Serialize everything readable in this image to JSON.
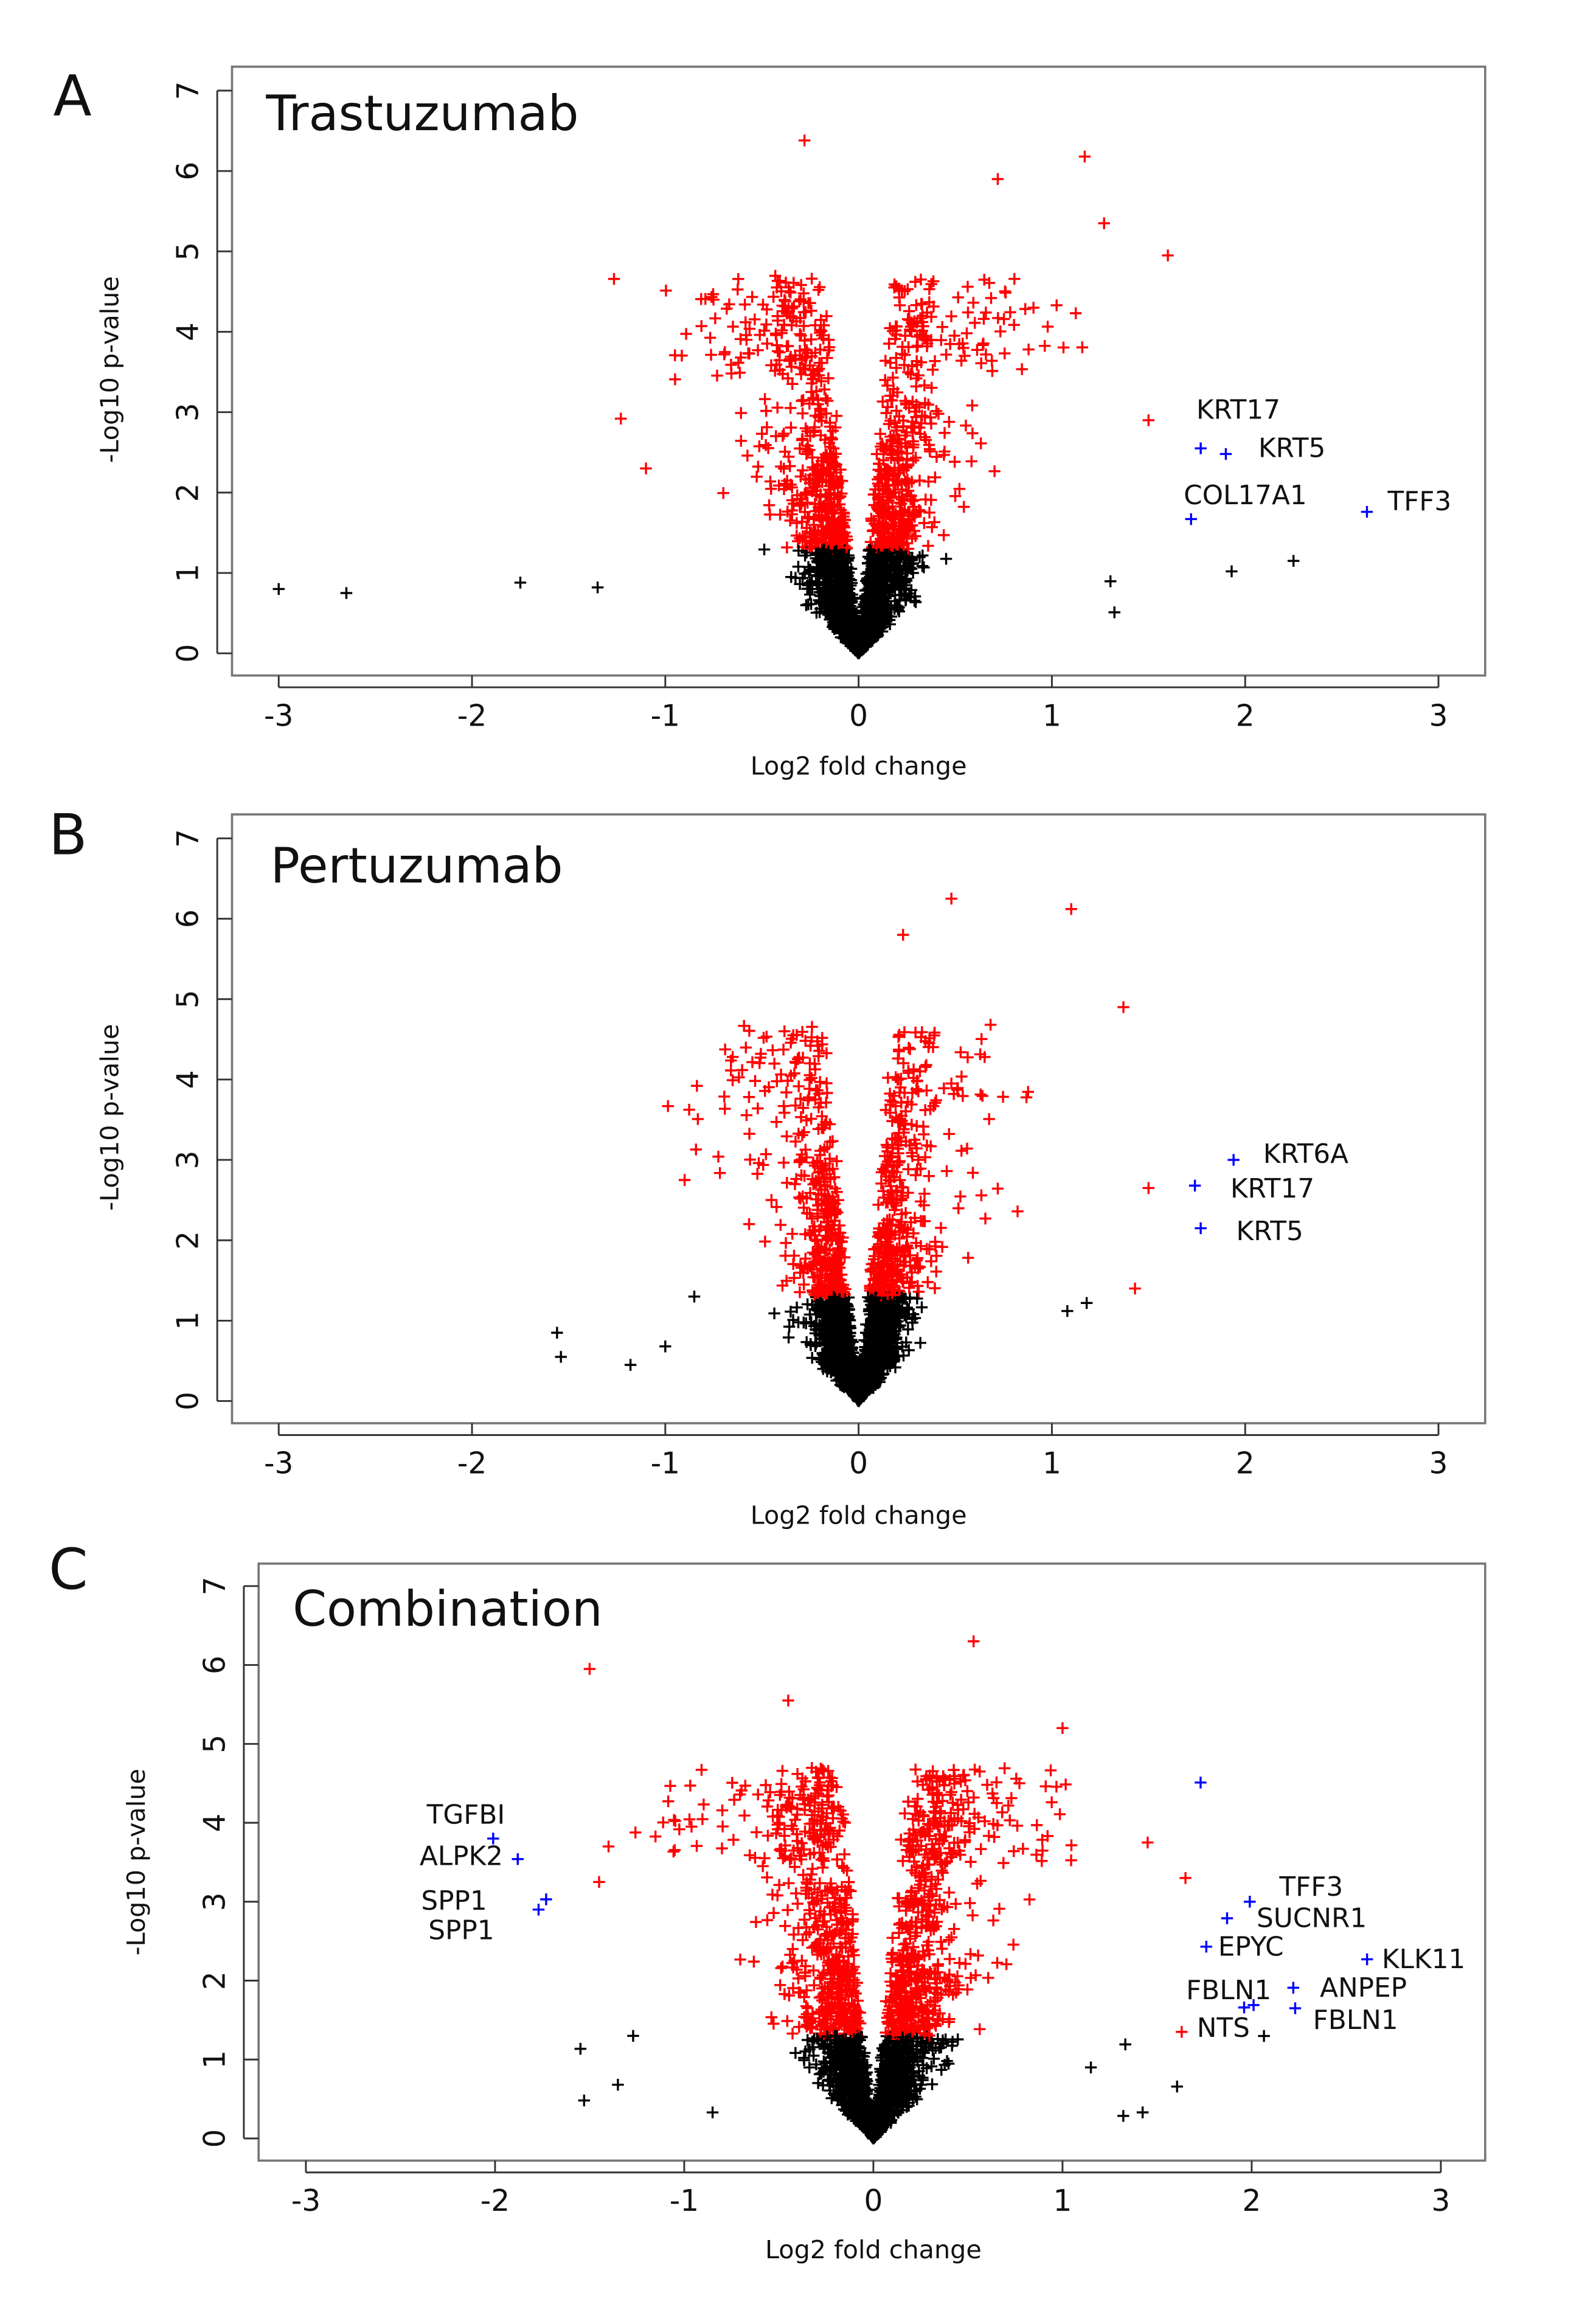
{
  "chart_data": [
    {
      "type": "scatter",
      "panel_letter": "A",
      "title": "Trastuzumab",
      "xlabel": "Log2 fold change",
      "ylabel": "-Log10 p-value",
      "xlim": [
        -3.2,
        3.2
      ],
      "ylim": [
        0,
        7
      ],
      "xticks": [
        "-3",
        "-2",
        "-1",
        "0",
        "1",
        "2",
        "3"
      ],
      "yticks": [
        "0",
        "1",
        "2",
        "3",
        "4",
        "5",
        "6",
        "7"
      ],
      "grid": false,
      "significance_threshold_y": 1.3,
      "colors": {
        "significant": "#ff0000",
        "not_significant": "#000000",
        "highlighted": "#0000ff"
      },
      "highlighted_genes": [
        {
          "label": "KRT17",
          "x": 1.77,
          "y": 2.55
        },
        {
          "label": "KRT5",
          "x": 1.9,
          "y": 2.48
        },
        {
          "label": "COL17A1",
          "x": 1.72,
          "y": 1.67
        },
        {
          "label": "TFF3",
          "x": 2.63,
          "y": 1.76
        }
      ],
      "notable_points": [
        {
          "x": -3.0,
          "y": 0.8
        },
        {
          "x": -2.65,
          "y": 0.75
        },
        {
          "x": -1.75,
          "y": 0.88
        },
        {
          "x": -1.35,
          "y": 0.82
        },
        {
          "x": -1.23,
          "y": 2.92
        },
        {
          "x": -1.1,
          "y": 2.3
        },
        {
          "x": -0.28,
          "y": 6.38
        },
        {
          "x": 1.17,
          "y": 6.18
        },
        {
          "x": 0.72,
          "y": 5.9
        },
        {
          "x": 1.27,
          "y": 5.35
        },
        {
          "x": 1.6,
          "y": 4.95
        },
        {
          "x": 1.93,
          "y": 1.02
        },
        {
          "x": 2.25,
          "y": 1.15
        },
        {
          "x": 1.5,
          "y": 2.9
        }
      ]
    },
    {
      "type": "scatter",
      "panel_letter": "B",
      "title": "Pertuzumab",
      "xlabel": "Log2 fold change",
      "ylabel": "-Log10 p-value",
      "xlim": [
        -3.2,
        3.2
      ],
      "ylim": [
        0,
        7
      ],
      "xticks": [
        "-3",
        "-2",
        "-1",
        "0",
        "1",
        "2",
        "3"
      ],
      "yticks": [
        "0",
        "1",
        "2",
        "3",
        "4",
        "5",
        "6",
        "7"
      ],
      "grid": false,
      "significance_threshold_y": 1.3,
      "colors": {
        "significant": "#ff0000",
        "not_significant": "#000000",
        "highlighted": "#0000ff"
      },
      "highlighted_genes": [
        {
          "label": "KRT6A",
          "x": 1.94,
          "y": 3.0
        },
        {
          "label": "KRT17",
          "x": 1.74,
          "y": 2.68
        },
        {
          "label": "KRT5",
          "x": 1.77,
          "y": 2.15
        }
      ],
      "notable_points": [
        {
          "x": -1.56,
          "y": 0.85
        },
        {
          "x": -1.54,
          "y": 0.55
        },
        {
          "x": -1.18,
          "y": 0.45
        },
        {
          "x": -1.0,
          "y": 0.68
        },
        {
          "x": -0.85,
          "y": 1.3
        },
        {
          "x": -0.9,
          "y": 2.75
        },
        {
          "x": 0.48,
          "y": 6.25
        },
        {
          "x": 1.1,
          "y": 6.12
        },
        {
          "x": 0.23,
          "y": 5.8
        },
        {
          "x": 1.37,
          "y": 4.9
        },
        {
          "x": 1.43,
          "y": 1.4
        },
        {
          "x": 1.5,
          "y": 2.65
        },
        {
          "x": 1.08,
          "y": 1.12
        },
        {
          "x": 1.18,
          "y": 1.22
        }
      ]
    },
    {
      "type": "scatter",
      "panel_letter": "C",
      "title": "Combination",
      "xlabel": "Log2 fold change",
      "ylabel": "-Log10 p-value",
      "xlim": [
        -3.2,
        3.2
      ],
      "ylim": [
        0,
        7
      ],
      "xticks": [
        "-3",
        "-2",
        "-1",
        "0",
        "1",
        "2",
        "3"
      ],
      "yticks": [
        "0",
        "1",
        "2",
        "3",
        "4",
        "5",
        "6",
        "7"
      ],
      "grid": false,
      "significance_threshold_y": 1.3,
      "colors": {
        "significant": "#ff0000",
        "not_significant": "#000000",
        "highlighted": "#0000ff"
      },
      "highlighted_genes": [
        {
          "label": "TGFBI",
          "x": -2.01,
          "y": 3.8
        },
        {
          "label": "ALPK2",
          "x": -1.88,
          "y": 3.54
        },
        {
          "label": "SPP1",
          "x": -1.73,
          "y": 3.03
        },
        {
          "label": "SPP1",
          "x": -1.77,
          "y": 2.9
        },
        {
          "label": "TFF3",
          "x": 1.99,
          "y": 3.0
        },
        {
          "label": "SUCNR1",
          "x": 1.87,
          "y": 2.79
        },
        {
          "label": "EPYC",
          "x": 1.76,
          "y": 2.43
        },
        {
          "label": "KLK11",
          "x": 2.61,
          "y": 2.27
        },
        {
          "label": "ANPEP",
          "x": 2.22,
          "y": 1.91
        },
        {
          "label": "FBLN1",
          "x": 2.01,
          "y": 1.69
        },
        {
          "label": "NTS",
          "x": 1.96,
          "y": 1.66
        },
        {
          "label": "FBLN1",
          "x": 2.23,
          "y": 1.65
        },
        {
          "label": "",
          "x": 1.73,
          "y": 4.51
        }
      ],
      "notable_points": [
        {
          "x": -1.5,
          "y": 5.95
        },
        {
          "x": 0.53,
          "y": 6.3
        },
        {
          "x": -0.45,
          "y": 5.55
        },
        {
          "x": 1.0,
          "y": 5.2
        },
        {
          "x": 1.45,
          "y": 3.75
        },
        {
          "x": 1.65,
          "y": 3.3
        },
        {
          "x": -1.45,
          "y": 3.25
        },
        {
          "x": -1.4,
          "y": 3.7
        },
        {
          "x": 1.63,
          "y": 1.35
        },
        {
          "x": 1.15,
          "y": 0.9
        },
        {
          "x": -1.27,
          "y": 1.3
        },
        {
          "x": -0.85,
          "y": 0.33
        }
      ]
    }
  ]
}
